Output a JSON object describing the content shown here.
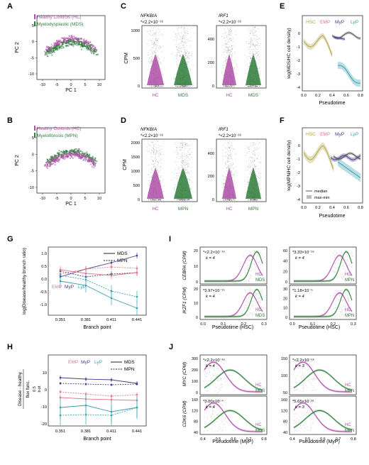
{
  "panels": {
    "A": {
      "letter": "A",
      "legend": [
        "Healthy Controls (HC)",
        "Myelodysplastic (MDS)"
      ],
      "xlabel": "PC 1",
      "ylabel": "PC 2",
      "xticks": [
        "-10",
        "-5",
        "0",
        "5",
        "10"
      ],
      "yticks": [
        "5",
        "0",
        "-5",
        "-10"
      ]
    },
    "B": {
      "letter": "B",
      "legend": [
        "Healthy Controls (HC)",
        "Myelofibrosis (MPN)"
      ],
      "xlabel": "PC 1",
      "ylabel": "PC 2",
      "xticks": [
        "-10",
        "-5",
        "0",
        "5",
        "10"
      ],
      "yticks": [
        "5",
        "0",
        "-5",
        "-10"
      ]
    },
    "C": {
      "letter": "C",
      "ylabel": "CPM",
      "genes": [
        "NFKBIA",
        "IRF1"
      ],
      "pvals": [
        "*<2.2×10⁻¹⁶",
        "*<2.2×10⁻¹⁶"
      ],
      "groups": [
        "HC",
        "MDS"
      ],
      "yticks1": [
        "1000",
        "500",
        "0"
      ],
      "yticks2": [
        "400",
        "200",
        "0"
      ]
    },
    "D": {
      "letter": "D",
      "ylabel": "CPM",
      "genes": [
        "NFKBIA",
        "IRF1"
      ],
      "pvals": [
        "*<2.2×10⁻¹⁶",
        "*<2.2×10⁻¹⁶"
      ],
      "groups": [
        "HC",
        "MPN"
      ],
      "yticks1": [
        "2000",
        "1500",
        "1000",
        "500",
        "0"
      ],
      "yticks2": [
        "400",
        "200",
        "0"
      ]
    },
    "E": {
      "letter": "E",
      "legend": [
        "HSC",
        "EMP",
        "MyP",
        "LyP"
      ],
      "ylabel": "log(MDS/HC cell density)",
      "xlabel": "Pseudotime",
      "xticks": [
        "0.0",
        "0.2",
        "0.4",
        "0.6",
        "0.8"
      ],
      "yticks": [
        "0",
        "-1",
        "-2",
        "-3",
        "-4"
      ]
    },
    "F": {
      "letter": "F",
      "legend": [
        "HSC",
        "EMP",
        "MyP",
        "LyP"
      ],
      "ylabel": "log(MPN/HC cell density)",
      "xlabel": "Pseudotime",
      "xticks": [
        "0.0",
        "0.2",
        "0.4",
        "0.6",
        "0.8"
      ],
      "yticks": [
        "0",
        "-1",
        "-2",
        "-3",
        "-4"
      ],
      "stat_legend": [
        "median",
        "max-min"
      ]
    },
    "G": {
      "letter": "G",
      "ylabel": "log(Disease/healthy branch ratio)",
      "xlabel": "Branch point",
      "xticks": [
        "0.351",
        "0.381",
        "0.411",
        "0.441"
      ],
      "yticks": [
        "1.0",
        "0.5",
        "0.0",
        "-0.5",
        "-1.0"
      ],
      "legend_lines": [
        "MDS",
        "MPN"
      ],
      "legend_cells": [
        "EMP",
        "MyP",
        "LyP"
      ]
    },
    "H": {
      "letter": "H",
      "ylabel": "Disease - healthy",
      "ylabel2": "flux func.",
      "ylabel3": "0.5",
      "ylabel4": "b-pt",
      "xlabel": "Branch point",
      "xticks": [
        "0.351",
        "0.381",
        "0.411",
        "0.441"
      ],
      "yticks": [
        "10",
        "0",
        "-10",
        "-20"
      ],
      "legend_lines": [
        "MDS",
        "MPN"
      ],
      "legend_cells": [
        "EMP",
        "MyP",
        "LyP"
      ]
    },
    "I": {
      "letter": "I",
      "xlabel": "Pseudotime (HSC)",
      "xticks": [
        "0.0",
        "0.1",
        "0.2",
        "0.3"
      ],
      "top_left": {
        "ylabel": "CEBPA (CPM)",
        "pval": "*<2.2×10⁻¹⁶",
        "k": "k = 4",
        "yticks": [
          "20",
          "10",
          "0"
        ],
        "lab1": "HC",
        "lab2": "MDS"
      },
      "top_right": {
        "pval": "*3.33×10⁻¹⁶",
        "k": "k = 4",
        "yticks": [
          "60",
          "40",
          "20",
          "0"
        ],
        "lab1": "HC",
        "lab2": "MPN"
      },
      "bot_left": {
        "ylabel": "IKZF1 (CPM)",
        "pval": "*3.97×10⁻¹⁵",
        "k": "k = 4",
        "yticks": [
          "20",
          "10",
          "0"
        ],
        "lab1": "HC",
        "lab2": "MDS"
      },
      "bot_right": {
        "pval": "*1.18×10⁻⁵",
        "k": "k = 4",
        "yticks": [
          "30",
          "20",
          "10",
          "0"
        ],
        "lab1": "HC",
        "lab2": "MPN"
      }
    },
    "J": {
      "letter": "J",
      "xlabel": "Pseudotime (MyP)",
      "xticks": [
        "0.4",
        "0.5",
        "0.6",
        "0.7",
        "0.8"
      ],
      "top_left": {
        "ylabel": "MYC (CPM)",
        "pval": "*<2.2×10⁻¹⁶",
        "k": "k = 4",
        "yticks": [
          "300",
          "200",
          "100",
          "0"
        ],
        "lab1": "HC",
        "lab2": "MDS"
      },
      "top_right": {
        "pval": "*<2.2×10⁻¹⁶",
        "k": "k = 3",
        "yticks": [
          "150",
          "100",
          "50"
        ],
        "lab1": "HC",
        "lab2": "MPN"
      },
      "bot_left": {
        "ylabel": "CDK6 (CPM)",
        "pval": "*3.00×10⁻⁴",
        "k": "k = 4",
        "yticks": [
          "160",
          "120",
          "80",
          "40"
        ],
        "lab1": "HC",
        "lab2": "MDS"
      },
      "bot_right": {
        "pval": "*5.65×10⁻¹²",
        "k": "k = 3",
        "yticks": [
          "160",
          "120",
          "80",
          "40"
        ],
        "lab1": "HC",
        "lab2": "MPN"
      }
    }
  },
  "colors": {
    "hc": "#b04fa8",
    "mds": "#2e7d3a",
    "hsc": "#b3a64a",
    "emp": "#e07a8c",
    "myp": "#4b3a8c",
    "lyp": "#3aa0b0",
    "grey": "#555555"
  }
}
